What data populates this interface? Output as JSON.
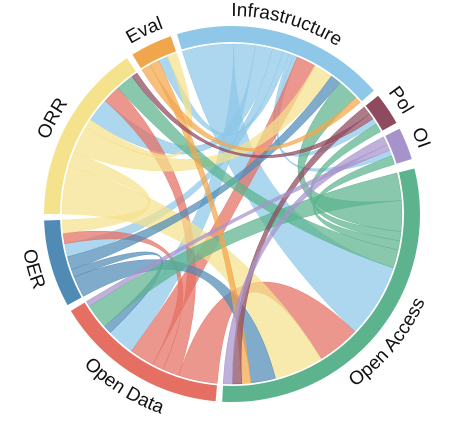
{
  "chart_data": {
    "type": "chord",
    "title": "",
    "segments": [
      {
        "key": "oa",
        "label": "Open Access",
        "color": "#5cb38e",
        "start": -14,
        "end": 93
      },
      {
        "key": "od",
        "label": "Open Data",
        "color": "#e46f62",
        "start": 95,
        "end": 149
      },
      {
        "key": "oer",
        "label": "OER",
        "color": "#4f8bb5",
        "start": 151,
        "end": 178
      },
      {
        "key": "orr",
        "label": "ORR",
        "color": "#f5e28c",
        "start": 180,
        "end": 236
      },
      {
        "key": "eval",
        "label": "Eval",
        "color": "#f2a64c",
        "start": 238,
        "end": 251
      },
      {
        "key": "infra",
        "label": "Infrastructure",
        "color": "#8ec7e8",
        "start": 253,
        "end": 319
      },
      {
        "key": "pol",
        "label": "Pol",
        "color": "#8e4a5e",
        "start": 321,
        "end": 331
      },
      {
        "key": "oi",
        "label": "OI",
        "color": "#a793cc",
        "start": 333,
        "end": 343
      }
    ],
    "links": [
      {
        "from": "infra",
        "to": "oa",
        "weight": 24
      },
      {
        "from": "infra",
        "to": "od",
        "weight": 10
      },
      {
        "from": "infra",
        "to": "orr",
        "weight": 8
      },
      {
        "from": "infra",
        "to": "oer",
        "weight": 5
      },
      {
        "from": "infra",
        "to": "eval",
        "weight": 3
      },
      {
        "from": "infra",
        "to": "pol",
        "weight": 2
      },
      {
        "from": "infra",
        "to": "oi",
        "weight": 2
      },
      {
        "from": "od",
        "to": "oa",
        "weight": 14
      },
      {
        "from": "od",
        "to": "orr",
        "weight": 6
      },
      {
        "from": "od",
        "to": "oer",
        "weight": 4
      },
      {
        "from": "od",
        "to": "infra",
        "weight": 9
      },
      {
        "from": "orr",
        "to": "oa",
        "weight": 16
      },
      {
        "from": "orr",
        "to": "oer",
        "weight": 5
      },
      {
        "from": "orr",
        "to": "infra",
        "weight": 9
      },
      {
        "from": "orr",
        "to": "eval",
        "weight": 3
      },
      {
        "from": "oer",
        "to": "oa",
        "weight": 8
      },
      {
        "from": "oer",
        "to": "od",
        "weight": 3
      },
      {
        "from": "oer",
        "to": "infra",
        "weight": 5
      },
      {
        "from": "oa",
        "to": "od",
        "weight": 9
      },
      {
        "from": "oa",
        "to": "infra",
        "weight": 10
      },
      {
        "from": "oa",
        "to": "pol",
        "weight": 3
      },
      {
        "from": "oa",
        "to": "oi",
        "weight": 3
      },
      {
        "from": "oa",
        "to": "orr",
        "weight": 6
      },
      {
        "from": "eval",
        "to": "infra",
        "weight": 3
      },
      {
        "from": "eval",
        "to": "oa",
        "weight": 3
      },
      {
        "from": "pol",
        "to": "oa",
        "weight": 3
      },
      {
        "from": "pol",
        "to": "orr",
        "weight": 2
      },
      {
        "from": "oi",
        "to": "oa",
        "weight": 3
      },
      {
        "from": "oi",
        "to": "od",
        "weight": 2
      }
    ]
  }
}
